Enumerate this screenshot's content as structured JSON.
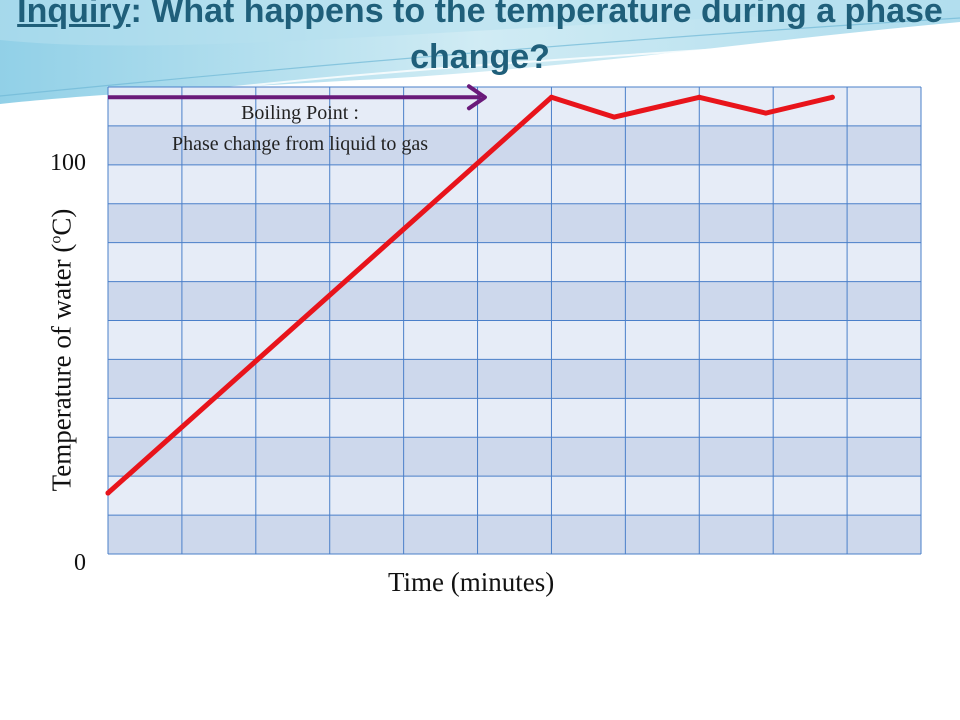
{
  "title": {
    "prefix": "Inquiry",
    "rest": ": What happens to the temperature during a phase change?"
  },
  "annotation": {
    "line1": "Boiling Point :",
    "line2": "Phase change from liquid to gas"
  },
  "colors": {
    "title": "#1f5f7a",
    "line": "#e8141b",
    "arrow": "#6a1a7a",
    "grid_light": "#e6ecf7",
    "grid_dark": "#cdd8ec",
    "grid_border": "#4a7fc9"
  },
  "chart_data": {
    "type": "line",
    "xlabel": "Time (minutes)",
    "ylabel_text": "Temperature of water (",
    "ylabel_degree": "o",
    "ylabel_unit": "C)",
    "y_tick_labels": [
      "100",
      "0"
    ],
    "yticks": [
      100,
      0
    ],
    "ylim": [
      -15.4,
      102.6
    ],
    "xlim": [
      0,
      11
    ],
    "grid": true,
    "series": [
      {
        "x": [
          0,
          6,
          6.85,
          8,
          8.9,
          9.8
        ],
        "y": [
          0,
          100,
          95,
          100,
          96,
          100
        ]
      }
    ],
    "annotation_arrow": {
      "x_start": 0,
      "x_end": 5.1,
      "y": 100
    }
  }
}
